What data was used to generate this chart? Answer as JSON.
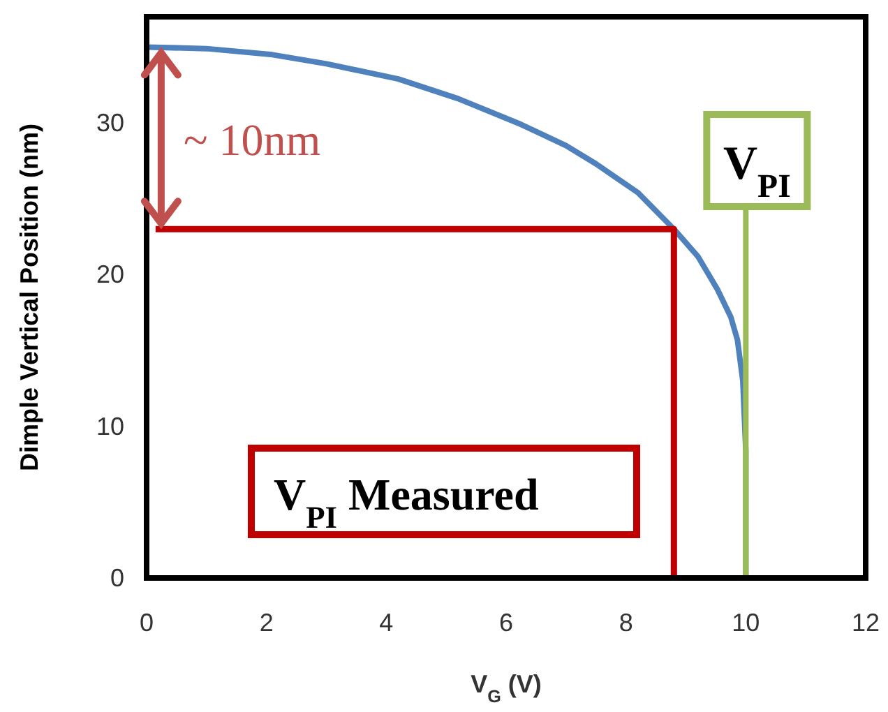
{
  "chart_data": {
    "type": "line",
    "xlabel": "V$_{G}$ (V)",
    "ylabel": "Dimple Vertical Position (nm)",
    "xlim": [
      0,
      12
    ],
    "ylim": [
      0,
      37
    ],
    "xticks": [
      0,
      2,
      4,
      6,
      8,
      10,
      12
    ],
    "yticks": [
      0,
      10,
      20,
      30
    ],
    "grid": false,
    "marker": "none",
    "line_style": "solid",
    "series": [
      {
        "color": "#4f81bd",
        "x": [
          0,
          1,
          2.1,
          3,
          4.2,
          5.2,
          6.25,
          7,
          7.5,
          8.2,
          8.8,
          9.2,
          9.53,
          9.75,
          9.86,
          9.95,
          10,
          10
        ],
        "values": [
          35,
          34.9,
          34.5,
          33.9,
          32.9,
          31.6,
          29.9,
          28.5,
          27.3,
          25.4,
          23,
          21.2,
          19,
          17.2,
          15.7,
          13,
          8.4,
          0
        ]
      },
      {
        "color": "#c00000",
        "x": [
          0.15,
          8.8,
          8.8
        ],
        "values": [
          23,
          23,
          0
        ]
      }
    ],
    "ref_lines": [
      {
        "axis": "x",
        "value": 10,
        "label": "V$_{PI}$",
        "color": "#9bbb59"
      }
    ],
    "annotations": [
      "~ 10nm",
      "V$_{PI}$ Measured"
    ]
  }
}
